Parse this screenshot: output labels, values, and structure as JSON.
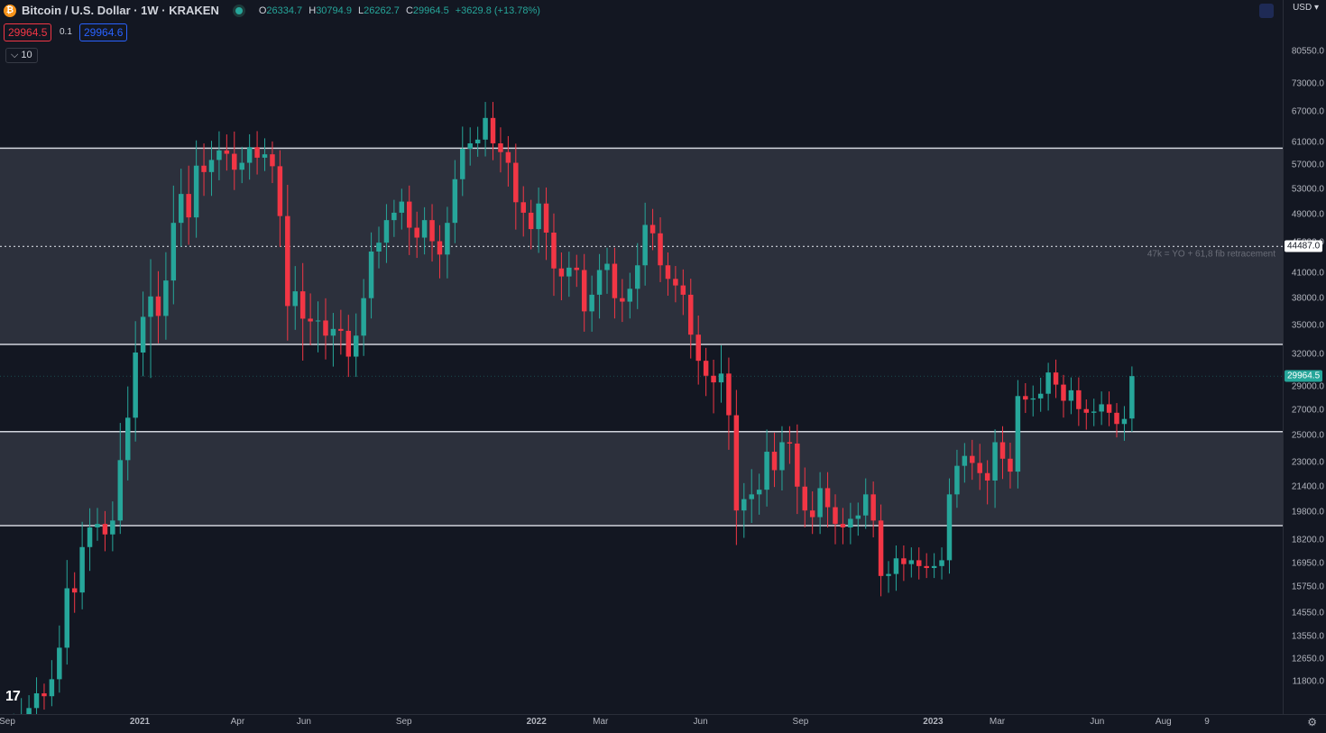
{
  "header": {
    "coin_symbol": "₿",
    "title": "Bitcoin / U.S. Dollar · 1W · KRAKEN",
    "ohlc": {
      "o": "26334.7",
      "h": "30794.9",
      "l": "26262.7",
      "c": "29964.5",
      "change": "+3629.8 (+13.78%)"
    },
    "bid": "29964.5",
    "spread": "0.1",
    "ask": "29964.6",
    "indicator_label": "10"
  },
  "currency": "USD",
  "logo_text": "17",
  "colors": {
    "up": "#26a69a",
    "down": "#f23645",
    "zone": "#363a45",
    "line": "#d1d4dc"
  },
  "chart_data": {
    "type": "candlestick",
    "scale": "log",
    "ylim": [
      11000,
      88000
    ],
    "y_ticks": [
      "80550.0",
      "73000.0",
      "67000.0",
      "61000.0",
      "57000.0",
      "53000.0",
      "49000.0",
      "45000.0",
      "41000.0",
      "38000.0",
      "35000.0",
      "32000.0",
      "29000.0",
      "27000.0",
      "25000.0",
      "23000.0",
      "21400.0",
      "19800.0",
      "18200.0",
      "16950.0",
      "15750.0",
      "14550.0",
      "13550.0",
      "12650.0",
      "11800.0"
    ],
    "x_ticks": [
      {
        "label": "Sep",
        "date": "2020-09-01"
      },
      {
        "label": "2021",
        "date": "2021-01-01"
      },
      {
        "label": "Apr",
        "date": "2021-04-01"
      },
      {
        "label": "Jun",
        "date": "2021-06-01"
      },
      {
        "label": "Sep",
        "date": "2021-09-01"
      },
      {
        "label": "2022",
        "date": "2022-01-01"
      },
      {
        "label": "Mar",
        "date": "2022-03-01"
      },
      {
        "label": "Jun",
        "date": "2022-06-01"
      },
      {
        "label": "Sep",
        "date": "2022-09-01"
      },
      {
        "label": "2023",
        "date": "2023-01-01"
      },
      {
        "label": "Mar",
        "date": "2023-03-01"
      },
      {
        "label": "Jun",
        "date": "2023-06-01"
      },
      {
        "label": "Aug",
        "date": "2023-08-01"
      },
      {
        "label": "9",
        "date": "2023-09-10"
      }
    ],
    "zones": [
      {
        "top": 60000,
        "bottom": 33000
      },
      {
        "top": 25300,
        "bottom": 19000
      }
    ],
    "dotted_levels": [
      {
        "price": 44487.0,
        "label": "44487.0",
        "annotation": "47k = YO + 61,8 fib retracement"
      }
    ],
    "last_price": {
      "price": 29964.5,
      "label": "29964.5"
    },
    "candles": {
      "start_date": "2020-09-07",
      "closes": [
        10300,
        10700,
        10900,
        11400,
        11300,
        11900,
        13100,
        15700,
        15500,
        17800,
        18900,
        19100,
        18500,
        19300,
        23200,
        26400,
        32200,
        35900,
        38200,
        36000,
        40100,
        47800,
        52200,
        48600,
        56900,
        55800,
        57900,
        59600,
        59000,
        56200,
        57400,
        60200,
        58300,
        58900,
        56800,
        48800,
        37100,
        38800,
        35700,
        35400,
        35500,
        33900,
        34600,
        34400,
        31800,
        33900,
        38000,
        43800,
        45000,
        48200,
        49300,
        51000,
        47100,
        45700,
        48200,
        45200,
        43400,
        47800,
        54600,
        59900,
        60900,
        61600,
        65800,
        60900,
        59300,
        57400,
        50900,
        49300,
        46900,
        50700,
        46400,
        41600,
        40600,
        41700,
        41400,
        36500,
        38400,
        41400,
        42200,
        38000,
        37600,
        39100,
        42000,
        47500,
        46300,
        42000,
        40300,
        39500,
        38400,
        34000,
        31400,
        30000,
        29400,
        30200,
        26600,
        19900,
        20600,
        20900,
        21200,
        23800,
        22500,
        24500,
        24400,
        21400,
        19900,
        19500,
        21300,
        20100,
        19100,
        18900,
        19400,
        19600,
        20900,
        19300,
        16300,
        16400,
        17200,
        16900,
        17100,
        16800,
        16700,
        16800,
        17100,
        20900,
        22800,
        23500,
        23000,
        22300,
        21800,
        24500,
        23300,
        22400,
        28200,
        27900,
        28000,
        28400,
        30300,
        29200,
        27800,
        28700,
        27100,
        26800,
        26900,
        27500,
        26800,
        25900,
        26300,
        29964.5
      ],
      "opens": [
        10000,
        10300,
        10700,
        10900,
        11400,
        11300,
        11900,
        13100,
        15700,
        15500,
        17800,
        18900,
        19100,
        18500,
        19300,
        23200,
        26400,
        32200,
        35900,
        38200,
        36000,
        40100,
        47800,
        52200,
        48600,
        56900,
        55800,
        57900,
        59600,
        59000,
        56200,
        57400,
        60200,
        58300,
        58900,
        56800,
        48800,
        37100,
        38800,
        35700,
        35400,
        35500,
        33900,
        34600,
        34400,
        31800,
        33900,
        38000,
        43800,
        45000,
        48200,
        49300,
        51000,
        47100,
        45700,
        48200,
        45200,
        43400,
        47800,
        54600,
        59900,
        60900,
        61600,
        65800,
        60900,
        59300,
        57400,
        50900,
        49300,
        46900,
        50700,
        46400,
        41600,
        40600,
        41700,
        41400,
        36500,
        38400,
        41400,
        42200,
        38000,
        37600,
        39100,
        42000,
        47500,
        46300,
        42000,
        40300,
        39500,
        38400,
        34000,
        31400,
        30000,
        29400,
        30200,
        26600,
        19900,
        20600,
        20900,
        21200,
        23800,
        22500,
        24500,
        24400,
        21400,
        19900,
        19500,
        21300,
        20100,
        19100,
        18900,
        19400,
        19600,
        20900,
        19300,
        16300,
        16400,
        17200,
        16900,
        17100,
        16800,
        16700,
        16800,
        17100,
        20900,
        22800,
        23500,
        23000,
        22300,
        21800,
        24500,
        23300,
        22400,
        28200,
        27900,
        28000,
        28400,
        30300,
        29200,
        27800,
        28700,
        27100,
        26800,
        26900,
        27500,
        26800,
        25900,
        26334.7
      ],
      "highs_pct": [
        0.04,
        0.05,
        0.04,
        0.05,
        0.03,
        0.06,
        0.07,
        0.09,
        0.05,
        0.08,
        0.06,
        0.05,
        0.04,
        0.06,
        0.12,
        0.1,
        0.1,
        0.08,
        0.12,
        0.08,
        0.09,
        0.12,
        0.08,
        0.09,
        0.08,
        0.07,
        0.06,
        0.06,
        0.05,
        0.07,
        0.05,
        0.04,
        0.05,
        0.05,
        0.04,
        0.05,
        0.1,
        0.08,
        0.09,
        0.08,
        0.06,
        0.07,
        0.05,
        0.06,
        0.05,
        0.07,
        0.06,
        0.06,
        0.05,
        0.05,
        0.04,
        0.04,
        0.05,
        0.05,
        0.04,
        0.05,
        0.05,
        0.05,
        0.06,
        0.07,
        0.05,
        0.04,
        0.05,
        0.05,
        0.05,
        0.05,
        0.06,
        0.05,
        0.04,
        0.05,
        0.05,
        0.06,
        0.05,
        0.05,
        0.04,
        0.05,
        0.06,
        0.05,
        0.05,
        0.05,
        0.06,
        0.05,
        0.07,
        0.07,
        0.05,
        0.05,
        0.04,
        0.04,
        0.05,
        0.05,
        0.06,
        0.04,
        0.05,
        0.09,
        0.05,
        0.08,
        0.05,
        0.08,
        0.05,
        0.07,
        0.06,
        0.05,
        0.05,
        0.06,
        0.06,
        0.06,
        0.05,
        0.05,
        0.04,
        0.05,
        0.05,
        0.04,
        0.05,
        0.04,
        0.05,
        0.04,
        0.04,
        0.04,
        0.04,
        0.04,
        0.04,
        0.04,
        0.04,
        0.05,
        0.05,
        0.04,
        0.05,
        0.06,
        0.04,
        0.04,
        0.05,
        0.05,
        0.05,
        0.04,
        0.04,
        0.05,
        0.03,
        0.04,
        0.03,
        0.04,
        0.04,
        0.03,
        0.04,
        0.04,
        0.04,
        0.03,
        0.04,
        0.03,
        0.028
      ],
      "lows_pct": [
        0.04,
        0.03,
        0.04,
        0.03,
        0.04,
        0.03,
        0.04,
        0.05,
        0.06,
        0.05,
        0.07,
        0.04,
        0.05,
        0.05,
        0.04,
        0.06,
        0.07,
        0.07,
        0.17,
        0.08,
        0.07,
        0.07,
        0.07,
        0.08,
        0.06,
        0.07,
        0.07,
        0.06,
        0.05,
        0.06,
        0.04,
        0.05,
        0.05,
        0.04,
        0.05,
        0.09,
        0.1,
        0.07,
        0.12,
        0.07,
        0.09,
        0.07,
        0.09,
        0.07,
        0.06,
        0.06,
        0.06,
        0.06,
        0.05,
        0.06,
        0.05,
        0.05,
        0.08,
        0.06,
        0.05,
        0.06,
        0.07,
        0.07,
        0.06,
        0.05,
        0.05,
        0.04,
        0.05,
        0.05,
        0.06,
        0.07,
        0.08,
        0.07,
        0.06,
        0.07,
        0.08,
        0.08,
        0.07,
        0.06,
        0.05,
        0.06,
        0.06,
        0.07,
        0.07,
        0.06,
        0.06,
        0.05,
        0.06,
        0.06,
        0.05,
        0.05,
        0.05,
        0.05,
        0.06,
        0.07,
        0.07,
        0.06,
        0.09,
        0.06,
        0.1,
        0.1,
        0.08,
        0.07,
        0.06,
        0.05,
        0.05,
        0.06,
        0.06,
        0.08,
        0.05,
        0.05,
        0.05,
        0.06,
        0.06,
        0.05,
        0.05,
        0.05,
        0.04,
        0.05,
        0.06,
        0.05,
        0.05,
        0.05,
        0.04,
        0.04,
        0.03,
        0.03,
        0.04,
        0.04,
        0.04,
        0.05,
        0.05,
        0.05,
        0.07,
        0.08,
        0.06,
        0.05,
        0.05,
        0.04,
        0.05,
        0.04,
        0.05,
        0.04,
        0.05,
        0.04,
        0.05,
        0.05,
        0.04,
        0.04,
        0.04,
        0.04,
        0.05,
        0.04,
        0.003
      ]
    }
  }
}
